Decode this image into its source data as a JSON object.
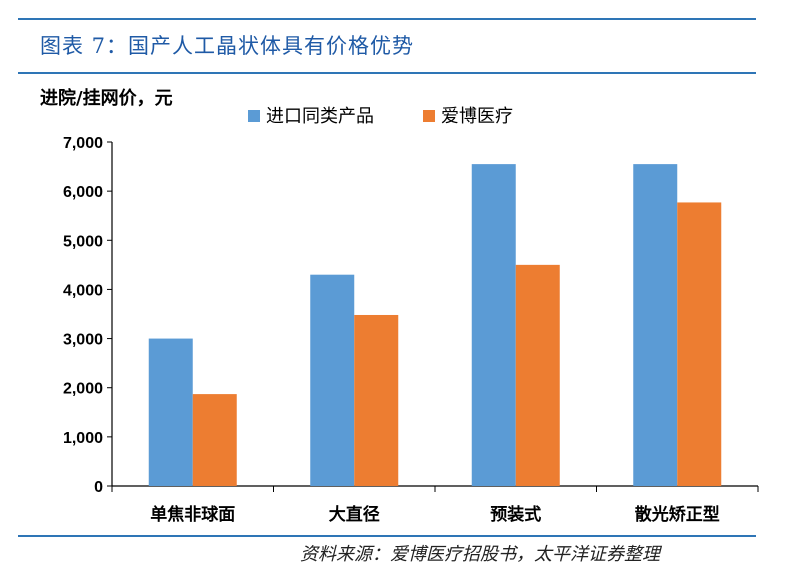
{
  "header": {
    "title": "图表 7：国产人工晶状体具有价格优势"
  },
  "footer": {
    "source": "资料来源：爱博医疗招股书，太平洋证券整理"
  },
  "chart_data": {
    "type": "bar",
    "ylabel": "进院/挂网价，元",
    "ylim": [
      0,
      7000
    ],
    "yticks": [
      0,
      1000,
      2000,
      3000,
      4000,
      5000,
      6000,
      7000
    ],
    "ytick_labels": [
      "0",
      "1,000",
      "2,000",
      "3,000",
      "4,000",
      "5,000",
      "6,000",
      "7,000"
    ],
    "categories": [
      "单焦非球面",
      "大直径",
      "预装式",
      "散光矫正型"
    ],
    "series": [
      {
        "name": "进口同类产品",
        "color": "#5b9bd5",
        "values": [
          3000,
          4300,
          6550,
          6550
        ]
      },
      {
        "name": "爱博医疗",
        "color": "#ed7d31",
        "values": [
          1870,
          3480,
          4500,
          5770
        ]
      }
    ],
    "legend": "top",
    "grid": false
  }
}
